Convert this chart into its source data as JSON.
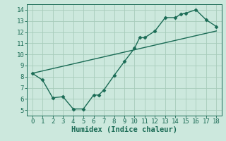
{
  "title": "",
  "xlabel": "Humidex (Indice chaleur)",
  "ylabel": "",
  "bg_color": "#cce8dd",
  "line_color": "#1a6b55",
  "marker": "D",
  "markersize": 2.5,
  "linewidth": 1.0,
  "xlim": [
    -0.5,
    18.5
  ],
  "ylim": [
    4.5,
    14.5
  ],
  "xticks": [
    0,
    1,
    2,
    3,
    4,
    5,
    6,
    7,
    8,
    9,
    10,
    11,
    12,
    13,
    14,
    15,
    16,
    17,
    18
  ],
  "yticks": [
    5,
    6,
    7,
    8,
    9,
    10,
    11,
    12,
    13,
    14
  ],
  "grid_color": "#a8ccbb",
  "curve1_x": [
    0,
    1,
    2,
    3,
    4,
    5,
    6,
    6.5,
    7,
    8,
    9,
    10,
    10.5,
    11,
    12,
    13,
    14,
    14.5,
    15,
    16,
    17,
    18
  ],
  "curve1_y": [
    8.3,
    7.7,
    6.1,
    6.2,
    5.1,
    5.1,
    6.35,
    6.35,
    6.8,
    8.1,
    9.35,
    10.55,
    11.5,
    11.5,
    12.1,
    13.3,
    13.3,
    13.6,
    13.7,
    14.0,
    13.1,
    12.5
  ],
  "curve2_x": [
    0,
    18
  ],
  "curve2_y": [
    8.3,
    12.1
  ],
  "tick_fontsize": 6.5,
  "xlabel_fontsize": 7.5
}
